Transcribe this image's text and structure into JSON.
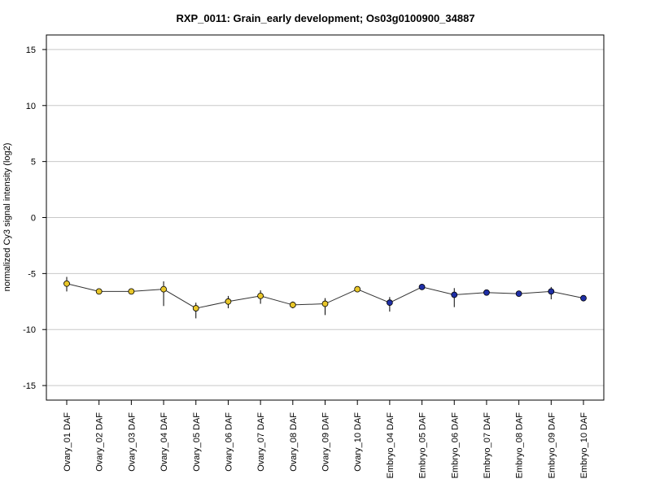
{
  "chart_data": {
    "type": "line",
    "title": "RXP_0011: Grain_early development; Os03g0100900_34887",
    "xlabel": "",
    "ylabel": "normalized Cy3 signal intensity (log2)",
    "ylim": [
      -16.3,
      16.3
    ],
    "yticks": [
      -15,
      -10,
      -5,
      0,
      5,
      10,
      15
    ],
    "ytick_labels": [
      "-15",
      "-10",
      "-5",
      "0",
      "5",
      "10",
      "15"
    ],
    "grid": "horizontal",
    "categories": [
      "Ovary_01 DAF",
      "Ovary_02 DAF",
      "Ovary_03 DAF",
      "Ovary_04 DAF",
      "Ovary_05 DAF",
      "Ovary_06 DAF",
      "Ovary_07 DAF",
      "Ovary_08 DAF",
      "Ovary_09 DAF",
      "Ovary_10 DAF",
      "Embryo_04 DAF",
      "Embryo_05 DAF",
      "Embryo_06 DAF",
      "Embryo_07 DAF",
      "Embryo_08 DAF",
      "Embryo_09 DAF",
      "Embryo_10 DAF"
    ],
    "values": [
      -5.9,
      -6.6,
      -6.6,
      -6.4,
      -8.1,
      -7.5,
      -7.0,
      -7.8,
      -7.7,
      -6.4,
      -7.6,
      -6.2,
      -6.9,
      -6.7,
      -6.8,
      -6.6,
      -7.2
    ],
    "error_low": [
      -6.6,
      -6.7,
      -6.7,
      -7.9,
      -9.0,
      -8.1,
      -7.7,
      -8.1,
      -8.7,
      -6.5,
      -8.4,
      -6.3,
      -8.0,
      -6.8,
      -6.9,
      -7.3,
      -7.3
    ],
    "error_high": [
      -5.3,
      -6.5,
      -6.5,
      -5.7,
      -7.6,
      -7.0,
      -6.5,
      -7.5,
      -7.2,
      -6.3,
      -7.1,
      -6.1,
      -6.3,
      -6.6,
      -6.7,
      -6.2,
      -7.1
    ],
    "point_colors": [
      "#e8c62a",
      "#e8c62a",
      "#e8c62a",
      "#e8c62a",
      "#e8c62a",
      "#e8c62a",
      "#e8c62a",
      "#e8c62a",
      "#e8c62a",
      "#e8c62a",
      "#1f2fa6",
      "#1f2fa6",
      "#1f2fa6",
      "#1f2fa6",
      "#1f2fa6",
      "#1f2fa6",
      "#1f2fa6"
    ],
    "line_color": "#333333",
    "grid_color": "#c8c8c8"
  }
}
